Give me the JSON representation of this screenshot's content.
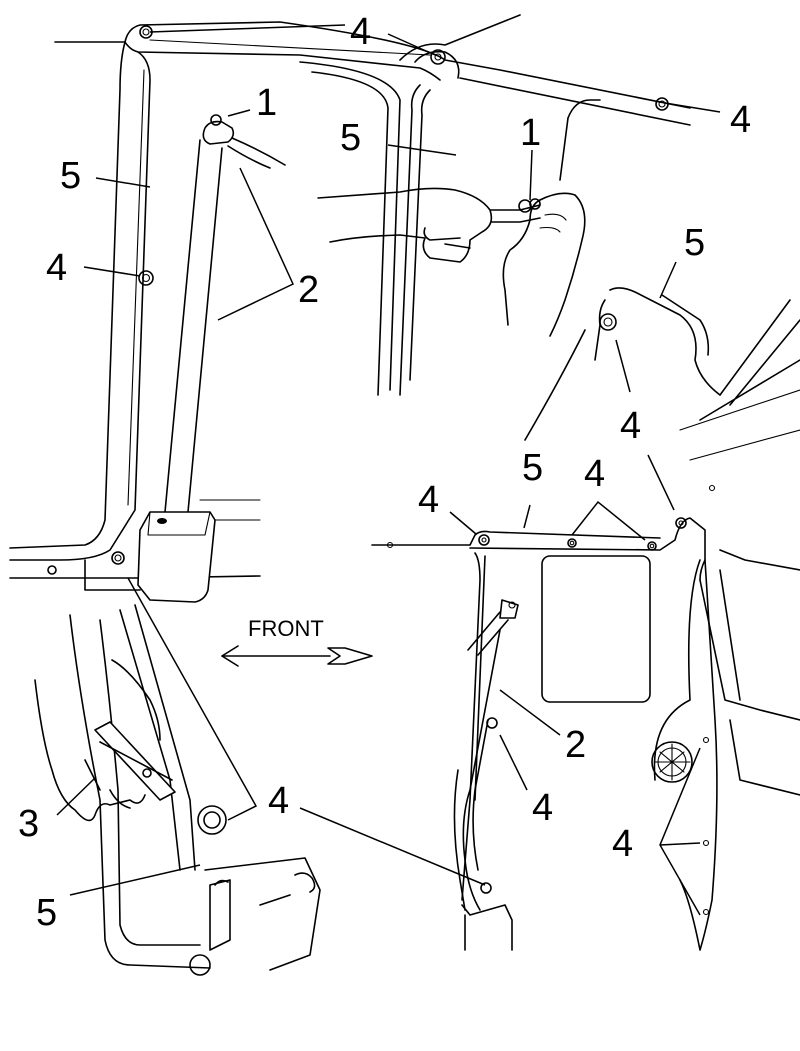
{
  "direction": {
    "label": "FRONT"
  },
  "callouts": {
    "c1a": "1",
    "c1b": "1",
    "c2a": "2",
    "c2b": "2",
    "c3": "3",
    "c4a": "4",
    "c4b": "4",
    "c4c": "4",
    "c4d": "4",
    "c4e": "4",
    "c4f": "4",
    "c4g": "4",
    "c4h": "4",
    "c4i": "4",
    "c4j": "4",
    "c5a": "5",
    "c5b": "5",
    "c5c": "5",
    "c5d": "5",
    "c5e": "5"
  }
}
